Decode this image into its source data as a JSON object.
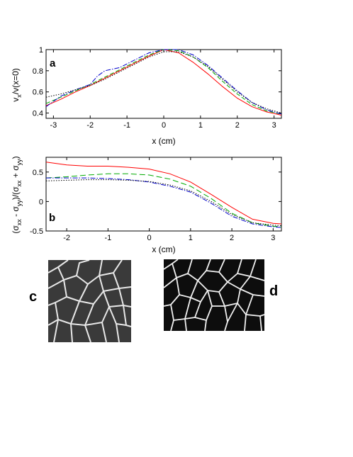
{
  "chart_data": [
    {
      "panel": "a",
      "type": "line",
      "ylabel_parts": {
        "v": "v",
        "sub": "x",
        "rest": "/v(x=0)"
      },
      "xlabel": "x (cm)",
      "xlim": [
        -3.2,
        3.2
      ],
      "ylim": [
        0.35,
        1.0
      ],
      "xticks": [
        -3,
        -2,
        -1,
        0,
        1,
        2,
        3
      ],
      "yticks": [
        0.4,
        0.6,
        0.8,
        1
      ],
      "ytick_labels": [
        "0.4",
        "0.6",
        "0.8",
        "1"
      ],
      "series": [
        {
          "color": "#ff0000",
          "dash": "",
          "x": [
            -3.2,
            -2.8,
            -2.4,
            -2.0,
            -1.6,
            -1.2,
            -0.8,
            -0.4,
            0,
            0.4,
            0.8,
            1.2,
            1.6,
            2.0,
            2.4,
            2.8,
            3.2
          ],
          "y": [
            0.47,
            0.53,
            0.6,
            0.66,
            0.73,
            0.8,
            0.87,
            0.94,
            1.0,
            0.97,
            0.88,
            0.77,
            0.65,
            0.54,
            0.46,
            0.41,
            0.38
          ]
        },
        {
          "color": "#00aa00",
          "dash": "6,3",
          "x": [
            -3.2,
            -2.8,
            -2.4,
            -2.0,
            -1.6,
            -1.2,
            -0.8,
            -0.4,
            0,
            0.4,
            0.8,
            1.2,
            1.6,
            2.0,
            2.4,
            2.8,
            3.2
          ],
          "y": [
            0.49,
            0.55,
            0.61,
            0.67,
            0.74,
            0.81,
            0.88,
            0.95,
            1.0,
            0.99,
            0.93,
            0.83,
            0.7,
            0.58,
            0.48,
            0.42,
            0.39
          ]
        },
        {
          "color": "#0000cc",
          "dash": "7,2,1.5,2",
          "x": [
            -3.2,
            -2.8,
            -2.4,
            -2.0,
            -1.8,
            -1.6,
            -1.2,
            -0.8,
            -0.4,
            0,
            0.4,
            0.8,
            1.2,
            1.6,
            2.0,
            2.4,
            2.8,
            3.2
          ],
          "y": [
            0.46,
            0.56,
            0.62,
            0.67,
            0.75,
            0.8,
            0.83,
            0.9,
            0.97,
            1.0,
            1.0,
            0.95,
            0.85,
            0.73,
            0.61,
            0.5,
            0.43,
            0.39
          ]
        },
        {
          "color": "#000000",
          "dash": "1.5,2",
          "x": [
            -3.2,
            -2.8,
            -2.4,
            -2.0,
            -1.6,
            -1.2,
            -0.8,
            -0.4,
            0,
            0.4,
            0.8,
            1.2,
            1.6,
            2.0,
            2.4,
            2.8,
            3.2
          ],
          "y": [
            0.55,
            0.58,
            0.62,
            0.66,
            0.72,
            0.79,
            0.86,
            0.93,
            0.98,
            0.98,
            0.93,
            0.84,
            0.72,
            0.6,
            0.5,
            0.44,
            0.4
          ]
        }
      ]
    },
    {
      "panel": "b",
      "type": "line",
      "ylabel_parts": {
        "open": "(σ",
        "s1": "xx",
        "m1": " - σ",
        "s2": "yy",
        "m2": ")/(σ",
        "s3": "xx",
        "m3": " + σ",
        "s4": "yy",
        "close": ")"
      },
      "xlabel": "x (cm)",
      "xlim": [
        -2.5,
        3.2
      ],
      "ylim": [
        -0.5,
        0.75
      ],
      "xticks": [
        -2,
        -1,
        0,
        1,
        2,
        3
      ],
      "yticks": [
        -0.5,
        0,
        0.5
      ],
      "ytick_labels": [
        "-0.5",
        "0",
        "0.5"
      ],
      "series": [
        {
          "color": "#ff0000",
          "dash": "",
          "x": [
            -2.5,
            -2.0,
            -1.5,
            -1.0,
            -0.5,
            0,
            0.5,
            1.0,
            1.5,
            2.0,
            2.5,
            3.0,
            3.2
          ],
          "y": [
            0.67,
            0.62,
            0.6,
            0.6,
            0.58,
            0.55,
            0.47,
            0.33,
            0.12,
            -0.1,
            -0.3,
            -0.37,
            -0.38
          ]
        },
        {
          "color": "#00aa00",
          "dash": "8,4",
          "x": [
            -2.5,
            -2.0,
            -1.5,
            -1.0,
            -0.5,
            0,
            0.5,
            1.0,
            1.5,
            2.0,
            2.5,
            3.0,
            3.2
          ],
          "y": [
            0.4,
            0.42,
            0.45,
            0.47,
            0.47,
            0.45,
            0.38,
            0.26,
            0.05,
            -0.2,
            -0.36,
            -0.42,
            -0.43
          ]
        },
        {
          "color": "#0000cc",
          "dash": "7,2,1.5,2",
          "x": [
            -2.5,
            -2.0,
            -1.5,
            -1.0,
            -0.5,
            0,
            0.5,
            1.0,
            1.5,
            2.0,
            2.5,
            3.0,
            3.2
          ],
          "y": [
            0.4,
            0.4,
            0.4,
            0.39,
            0.37,
            0.33,
            0.26,
            0.16,
            -0.03,
            -0.25,
            -0.38,
            -0.43,
            -0.44
          ]
        },
        {
          "color": "#000000",
          "dash": "1.5,2",
          "x": [
            -2.5,
            -2.0,
            -1.5,
            -1.0,
            -0.5,
            0,
            0.5,
            1.0,
            1.5,
            2.0,
            2.5,
            3.0,
            3.2
          ],
          "y": [
            0.35,
            0.36,
            0.37,
            0.37,
            0.36,
            0.34,
            0.28,
            0.18,
            0.0,
            -0.22,
            -0.36,
            -0.4,
            -0.41
          ]
        }
      ]
    }
  ],
  "panels": {
    "a": "a",
    "b": "b",
    "c": "c",
    "d": "d"
  }
}
